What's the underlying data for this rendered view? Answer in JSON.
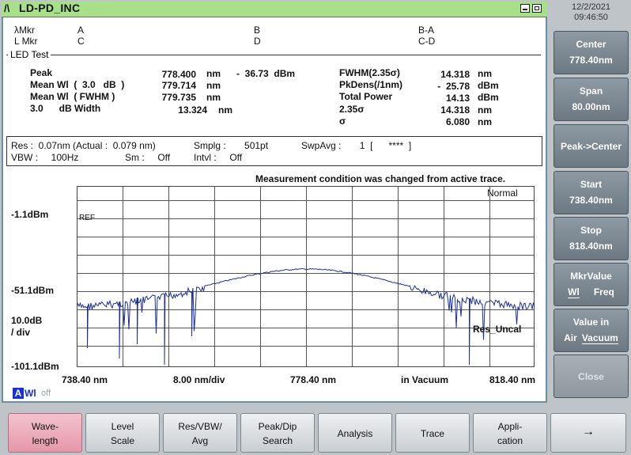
{
  "window": {
    "title": "LD-PD_INC"
  },
  "datetime": {
    "date": "12/2/2021",
    "time": "09:46:50"
  },
  "markers": {
    "lambda_mkr": "λMkr",
    "l_mkr": "L Mkr",
    "a": "A",
    "b": "B",
    "ba": "B-A",
    "c": "C",
    "d": "D",
    "cd": "C-D"
  },
  "led_test": {
    "title": "LED Test",
    "peak_label": "Peak",
    "peak_value": "778.400",
    "peak_unit": "nm",
    "peak_level": "-  36.73  dBm",
    "mean3_label": "Mean Wl  (  3.0   dB  )",
    "mean3_value": "779.714",
    "mean3_unit": "nm",
    "meanf_label": "Mean Wl  ( FWHM )",
    "meanf_value": "779.735",
    "meanf_unit": "nm",
    "width_label": "3.0      dB Width",
    "width_value": "13.324",
    "width_unit": "nm",
    "fwhm_label": "FWHM(2.35σ)",
    "fwhm_value": "14.318",
    "fwhm_unit": "nm",
    "pkdens_label": "PkDens(/1nm)",
    "pkdens_value": "-  25.78",
    "pkdens_unit": "dBm",
    "total_label": "Total Power",
    "total_value": "14.13",
    "total_unit": "dBm",
    "s235_label": "2.35σ",
    "s235_value": "14.318",
    "s235_unit": "nm",
    "sigma_label": "σ",
    "sigma_value": "6.080",
    "sigma_unit": "nm"
  },
  "conditions": {
    "res": "Res :  0.07nm (Actual :  0.079 nm)",
    "smplg": "Smplg :       501pt",
    "swpavg": "SwpAvg :       1  [      ****  ]",
    "vbw": "VBW :     100Hz",
    "sm": "Sm :     Off",
    "intvl": "Intvl :     Off"
  },
  "graph": {
    "notice": "Measurement condition was changed from active trace.",
    "mode": "Normal",
    "ref_label": "REF",
    "y_top": "-1.1dBm",
    "y_mid": "-51.1dBm",
    "y_div": "10.0dB",
    "y_div2": "/ div",
    "y_bot": "-101.1dBm",
    "x_start": "738.40 nm",
    "x_div": "8.00 nm/div",
    "x_center": "778.40 nm",
    "x_medium": "in Vacuum",
    "x_stop": "818.40 nm",
    "res_uncal": "Res_Uncal",
    "aw_a": "A",
    "aw_rest": "Wl",
    "aw_off": "off",
    "trace_color": "#1a2fa0"
  },
  "side_buttons": [
    {
      "l1": "Center",
      "l2": "778.40nm"
    },
    {
      "l1": "Span",
      "l2": "80.00nm"
    },
    {
      "l1": "Peak->Center",
      "l2": ""
    },
    {
      "l1": "Start",
      "l2": "738.40nm"
    },
    {
      "l1": "Stop",
      "l2": "818.40nm"
    },
    {
      "l1": "MkrValue",
      "l2a": "Wl",
      "l2b": "Freq"
    },
    {
      "l1": "Value in",
      "l2a": "Air",
      "l2b": "Vacuum"
    },
    {
      "l1": "Close",
      "l2": ""
    }
  ],
  "tabs": [
    {
      "l1": "Wave-",
      "l2": "length"
    },
    {
      "l1": "Level",
      "l2": "Scale"
    },
    {
      "l1": "Res/VBW/",
      "l2": "Avg"
    },
    {
      "l1": "Peak/Dip",
      "l2": "Search"
    },
    {
      "c": "Analysis"
    },
    {
      "c": "Trace"
    },
    {
      "l1": "Appli-",
      "l2": "cation"
    },
    {
      "c": "→"
    }
  ]
}
